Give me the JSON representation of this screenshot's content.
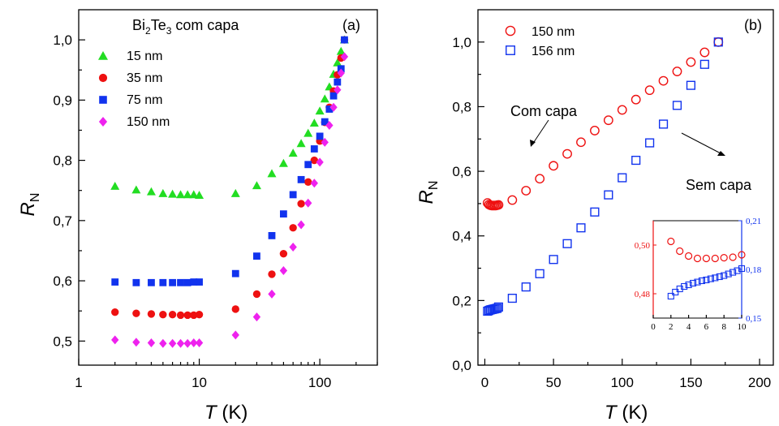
{
  "chart_data": [
    {
      "type": "scatter",
      "panel_label": "(a)",
      "title_main": "Bi",
      "title_sub": "2",
      "title_main2": "Te",
      "title_sub2": "3",
      "title_rest": " com capa",
      "xlabel_var": "T",
      "xlabel_unit": " (K)",
      "ylabel_var": "R",
      "ylabel_sub": "N",
      "xscale": "log",
      "xlim": [
        1,
        300
      ],
      "ylim": [
        0.46,
        1.05
      ],
      "xticks": [
        1,
        10,
        100
      ],
      "xtick_labels": [
        "1",
        "10",
        "100"
      ],
      "yticks": [
        0.5,
        0.6,
        0.7,
        0.8,
        0.9,
        1.0
      ],
      "ytick_labels": [
        "0,5",
        "0,6",
        "0,7",
        "0,8",
        "0,9",
        "1,0"
      ],
      "legend_position": "top-left",
      "series": [
        {
          "name": "15 nm",
          "color": "#22dd22",
          "marker": "triangle",
          "x": [
            2,
            3,
            4,
            5,
            6,
            7,
            8,
            9,
            10,
            20,
            30,
            40,
            50,
            60,
            70,
            80,
            90,
            100,
            110,
            120,
            130,
            140,
            150,
            160
          ],
          "y": [
            0.757,
            0.751,
            0.748,
            0.745,
            0.744,
            0.743,
            0.743,
            0.743,
            0.742,
            0.745,
            0.758,
            0.778,
            0.795,
            0.812,
            0.828,
            0.845,
            0.862,
            0.882,
            0.902,
            0.922,
            0.943,
            0.962,
            0.981,
            1.0
          ]
        },
        {
          "name": "35 nm",
          "color": "#ee1111",
          "marker": "circle",
          "x": [
            2,
            3,
            4,
            5,
            6,
            7,
            8,
            9,
            10,
            20,
            30,
            40,
            50,
            60,
            70,
            80,
            90,
            100,
            110,
            120,
            130,
            140,
            150,
            160
          ],
          "y": [
            0.548,
            0.546,
            0.545,
            0.544,
            0.544,
            0.543,
            0.543,
            0.543,
            0.544,
            0.553,
            0.578,
            0.611,
            0.645,
            0.688,
            0.728,
            0.764,
            0.8,
            0.832,
            0.863,
            0.888,
            0.915,
            0.942,
            0.97,
            1.0
          ]
        },
        {
          "name": "75 nm",
          "color": "#1133ee",
          "marker": "square",
          "x": [
            2,
            3,
            4,
            5,
            6,
            7,
            8,
            9,
            10,
            20,
            30,
            40,
            50,
            60,
            70,
            80,
            90,
            100,
            110,
            120,
            130,
            140,
            150,
            160
          ],
          "y": [
            0.598,
            0.597,
            0.597,
            0.597,
            0.597,
            0.597,
            0.597,
            0.598,
            0.598,
            0.612,
            0.641,
            0.675,
            0.711,
            0.743,
            0.768,
            0.793,
            0.819,
            0.84,
            0.864,
            0.885,
            0.907,
            0.93,
            0.952,
            1.0
          ]
        },
        {
          "name": "150 nm",
          "color": "#ee22ee",
          "marker": "diamond",
          "x": [
            2,
            3,
            4,
            5,
            6,
            7,
            8,
            9,
            10,
            20,
            30,
            40,
            50,
            60,
            70,
            80,
            90,
            100,
            110,
            120,
            130,
            140,
            150,
            160
          ],
          "y": [
            0.502,
            0.498,
            0.497,
            0.496,
            0.496,
            0.496,
            0.496,
            0.497,
            0.497,
            0.51,
            0.54,
            0.578,
            0.617,
            0.656,
            0.693,
            0.729,
            0.762,
            0.797,
            0.83,
            0.858,
            0.888,
            0.917,
            0.945,
            0.972
          ]
        }
      ]
    },
    {
      "type": "scatter",
      "panel_label": "(b)",
      "xlabel_var": "T",
      "xlabel_unit": " (K)",
      "ylabel_var": "R",
      "ylabel_sub": "N",
      "xlim": [
        -5,
        210
      ],
      "ylim": [
        0,
        1.1
      ],
      "xticks": [
        0,
        50,
        100,
        150,
        200
      ],
      "xtick_labels": [
        "0",
        "50",
        "100",
        "150",
        "200"
      ],
      "yticks": [
        0,
        0.2,
        0.4,
        0.6,
        0.8,
        1.0
      ],
      "ytick_labels": [
        "0,0",
        "0,2",
        "0,4",
        "0,6",
        "0,8",
        "1,0"
      ],
      "legend_position": "top-left",
      "annotations": {
        "with_cap": "Com capa",
        "without_cap": "Sem capa"
      },
      "series": [
        {
          "name": "150 nm",
          "color": "#ee1111",
          "marker": "open-circle",
          "x": [
            2,
            3,
            4,
            5,
            6,
            7,
            8,
            9,
            10,
            20,
            30,
            40,
            50,
            60,
            70,
            80,
            90,
            100,
            110,
            120,
            130,
            140,
            150,
            160,
            170
          ],
          "y": [
            0.502,
            0.497,
            0.495,
            0.494,
            0.494,
            0.494,
            0.494,
            0.495,
            0.496,
            0.511,
            0.54,
            0.577,
            0.617,
            0.654,
            0.69,
            0.726,
            0.758,
            0.79,
            0.822,
            0.851,
            0.88,
            0.909,
            0.938,
            0.968,
            1.0
          ]
        },
        {
          "name": "156 nm",
          "color": "#1133ee",
          "marker": "open-square",
          "x": [
            2,
            3,
            4,
            5,
            6,
            7,
            8,
            9,
            10,
            20,
            30,
            40,
            50,
            60,
            70,
            80,
            90,
            100,
            110,
            120,
            130,
            140,
            150,
            160,
            170
          ],
          "y": [
            0.167,
            0.169,
            0.171,
            0.172,
            0.173,
            0.174,
            0.175,
            0.176,
            0.18,
            0.207,
            0.242,
            0.283,
            0.327,
            0.376,
            0.425,
            0.474,
            0.527,
            0.58,
            0.634,
            0.688,
            0.746,
            0.804,
            0.866,
            0.931,
            1.0
          ]
        }
      ],
      "inset": {
        "xlim": [
          0,
          10
        ],
        "xticks": [
          0,
          2,
          4,
          6,
          8,
          10
        ],
        "xtick_labels": [
          "0",
          "2",
          "4",
          "6",
          "8",
          "10"
        ],
        "ylim_left": [
          0.47,
          0.51
        ],
        "yticks_left": [
          0.48,
          0.5
        ],
        "ytick_labels_left": [
          "0,48",
          "0,50"
        ],
        "ylim_right": [
          0.15,
          0.21
        ],
        "yticks_right": [
          0.15,
          0.18,
          0.21
        ],
        "ytick_labels_right": [
          "0,15",
          "0,18",
          "0,21"
        ],
        "left_color": "#ee1111",
        "right_color": "#1133ee",
        "series_left": {
          "x": [
            2,
            3,
            4,
            5,
            6,
            7,
            8,
            9,
            10
          ],
          "y": [
            0.5015,
            0.4975,
            0.4955,
            0.4945,
            0.4945,
            0.4945,
            0.4948,
            0.495,
            0.496
          ]
        },
        "series_right": {
          "x": [
            2,
            2.5,
            3,
            3.5,
            4,
            4.5,
            5,
            5.5,
            6,
            6.5,
            7,
            7.5,
            8,
            8.5,
            9,
            9.5,
            10
          ],
          "y": [
            0.1635,
            0.166,
            0.168,
            0.1695,
            0.1705,
            0.1715,
            0.1722,
            0.173,
            0.1735,
            0.1742,
            0.1748,
            0.1755,
            0.1762,
            0.1772,
            0.1782,
            0.1792,
            0.1805
          ]
        }
      }
    }
  ]
}
